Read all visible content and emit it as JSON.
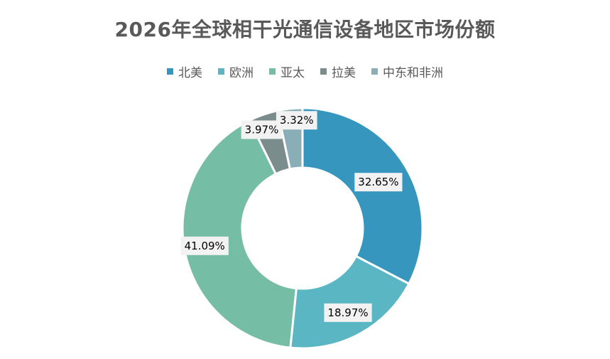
{
  "chart_data": {
    "type": "pie",
    "variant": "doughnut",
    "title": "2026年全球相干光通信设备地区市场份额",
    "legend_position": "top",
    "categories": [
      "北美",
      "欧洲",
      "亚太",
      "拉美",
      "中东和非洲"
    ],
    "values": [
      32.65,
      18.97,
      41.09,
      3.97,
      3.32
    ],
    "labels": [
      "32.65%",
      "18.97%",
      "41.09%",
      "3.97%",
      "3.32%"
    ],
    "colors": [
      "#3696bd",
      "#5bb6c3",
      "#76bda6",
      "#7a8c8c",
      "#8aaeb8"
    ]
  }
}
